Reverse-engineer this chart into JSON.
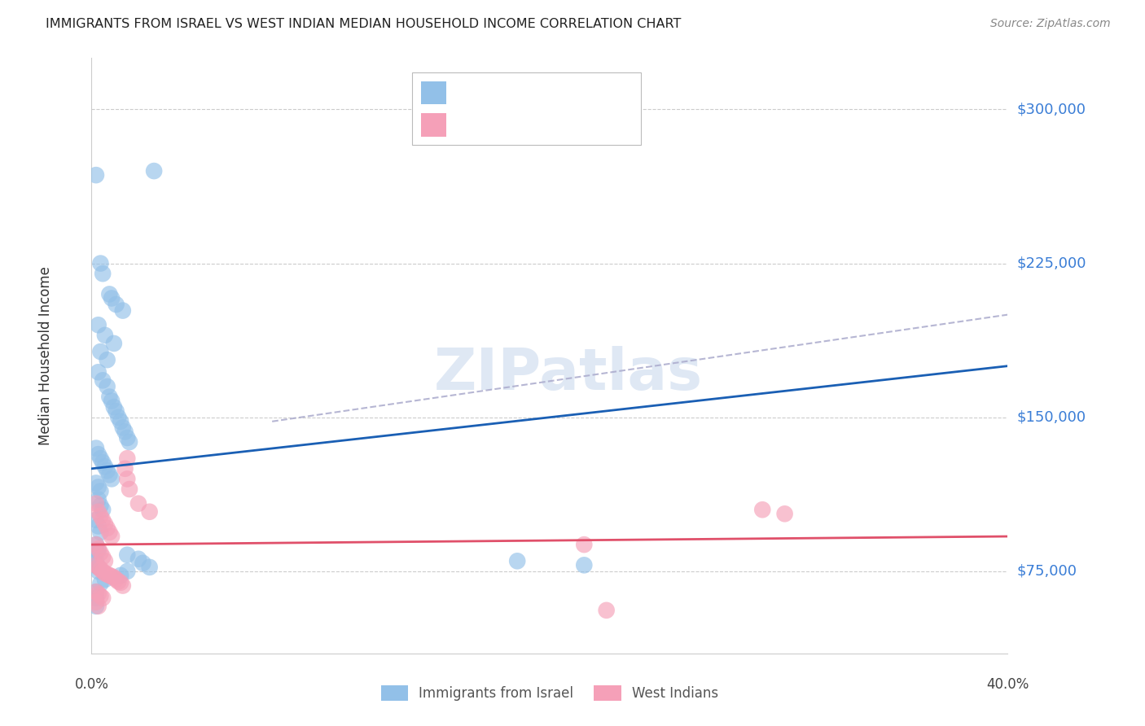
{
  "title": "IMMIGRANTS FROM ISRAEL VS WEST INDIAN MEDIAN HOUSEHOLD INCOME CORRELATION CHART",
  "source": "Source: ZipAtlas.com",
  "ylabel": "Median Household Income",
  "yticks": [
    75000,
    150000,
    225000,
    300000
  ],
  "ytick_labels": [
    "$75,000",
    "$150,000",
    "$225,000",
    "$300,000"
  ],
  "ymin": 35000,
  "ymax": 325000,
  "xmin": -0.001,
  "xmax": 0.41,
  "xtick_labels": [
    "0.0%",
    "40.0%"
  ],
  "israel_color": "#92c0e8",
  "west_color": "#f5a0b8",
  "israel_line_color": "#1a5fb4",
  "west_line_color": "#e0506a",
  "dash_color": "#aaaacc",
  "background_color": "#ffffff",
  "grid_color": "#cccccc",
  "title_fontsize": 11.5,
  "tick_label_color": "#3a7dd6",
  "watermark": "ZIPatlas",
  "israel_x": [
    0.001,
    0.027,
    0.003,
    0.004,
    0.007,
    0.008,
    0.01,
    0.013,
    0.002,
    0.005,
    0.009,
    0.003,
    0.006,
    0.002,
    0.004,
    0.006,
    0.007,
    0.008,
    0.009,
    0.01,
    0.011,
    0.012,
    0.013,
    0.014,
    0.015,
    0.016,
    0.001,
    0.002,
    0.003,
    0.004,
    0.005,
    0.006,
    0.007,
    0.008,
    0.001,
    0.002,
    0.003,
    0.002,
    0.003,
    0.004,
    0.001,
    0.002,
    0.003,
    0.001,
    0.002,
    0.015,
    0.02,
    0.022,
    0.025,
    0.015,
    0.012,
    0.005,
    0.003,
    0.001,
    0.001,
    0.002,
    0.001,
    0.001,
    0.001,
    0.19,
    0.001,
    0.002,
    0.22
  ],
  "israel_y": [
    268000,
    270000,
    225000,
    220000,
    210000,
    208000,
    205000,
    202000,
    195000,
    190000,
    186000,
    182000,
    178000,
    172000,
    168000,
    165000,
    160000,
    158000,
    155000,
    153000,
    150000,
    148000,
    145000,
    143000,
    140000,
    138000,
    135000,
    132000,
    130000,
    128000,
    126000,
    124000,
    122000,
    120000,
    118000,
    116000,
    114000,
    110000,
    107000,
    105000,
    100000,
    97000,
    94000,
    88000,
    85000,
    83000,
    81000,
    79000,
    77000,
    75000,
    73000,
    71000,
    69000,
    78000,
    80000,
    77000,
    85000,
    65000,
    62000,
    80000,
    58000,
    75000,
    78000
  ],
  "west_x": [
    0.001,
    0.002,
    0.003,
    0.004,
    0.005,
    0.006,
    0.007,
    0.008,
    0.001,
    0.002,
    0.003,
    0.004,
    0.005,
    0.001,
    0.002,
    0.003,
    0.004,
    0.005,
    0.006,
    0.007,
    0.008,
    0.009,
    0.01,
    0.011,
    0.012,
    0.013,
    0.001,
    0.002,
    0.003,
    0.004,
    0.001,
    0.002,
    0.015,
    0.014,
    0.015,
    0.016,
    0.02,
    0.025,
    0.3,
    0.31,
    0.22,
    0.23
  ],
  "west_y": [
    108000,
    104000,
    102000,
    100000,
    98000,
    96000,
    94000,
    92000,
    88000,
    86000,
    84000,
    82000,
    80000,
    78000,
    77000,
    76000,
    75000,
    74000,
    73500,
    73000,
    72500,
    72000,
    71000,
    70000,
    69500,
    68000,
    65000,
    64000,
    63000,
    62000,
    60000,
    58000,
    130000,
    125000,
    120000,
    115000,
    108000,
    104000,
    105000,
    103000,
    88000,
    56000
  ],
  "israel_trendline": [
    125000,
    175000
  ],
  "west_trendline": [
    88000,
    92000
  ],
  "dash_line": [
    [
      0.08,
      148000
    ],
    [
      0.41,
      200000
    ]
  ]
}
